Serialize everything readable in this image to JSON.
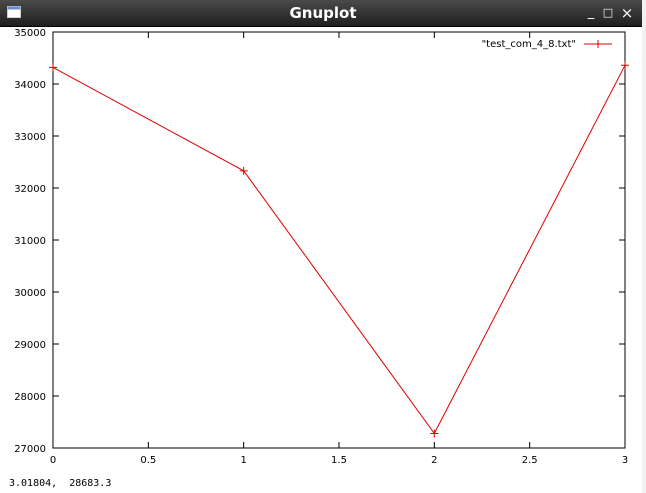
{
  "window": {
    "title": "Gnuplot",
    "buttons": {
      "minimize": "_",
      "maximize": "□",
      "close": "×"
    },
    "icon": "window-icon"
  },
  "status": {
    "coords": "3.01804,  28683.3"
  },
  "colors": {
    "line": "#dd0000",
    "titlebar": "#2b2b2b"
  },
  "chart_data": {
    "type": "line",
    "x": [
      0,
      1,
      2,
      3
    ],
    "series": [
      {
        "name": "\"test_com_4_8.txt\"",
        "values": [
          34320,
          32330,
          27280,
          34360
        ],
        "color": "#dd0000",
        "marker": "+"
      }
    ],
    "xlim": [
      0,
      3
    ],
    "ylim": [
      27000,
      35000
    ],
    "xticks": [
      "0",
      "0.5",
      "1",
      "1.5",
      "2",
      "2.5",
      "3"
    ],
    "xtick_values": [
      0,
      0.5,
      1,
      1.5,
      2,
      2.5,
      3
    ],
    "yticks": [
      "27000",
      "28000",
      "29000",
      "30000",
      "31000",
      "32000",
      "33000",
      "34000",
      "35000"
    ],
    "ytick_values": [
      27000,
      28000,
      29000,
      30000,
      31000,
      32000,
      33000,
      34000,
      35000
    ],
    "legend": "top-right",
    "grid": false
  }
}
